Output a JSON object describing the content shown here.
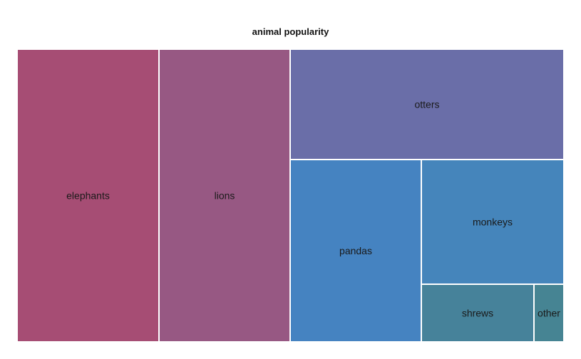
{
  "chart_data": {
    "type": "treemap",
    "title": "animal popularity",
    "items": [
      {
        "name": "elephants",
        "color": "#a64d74"
      },
      {
        "name": "lions",
        "color": "#975883"
      },
      {
        "name": "otters",
        "color": "#6a6ea8"
      },
      {
        "name": "pandas",
        "color": "#4583c1"
      },
      {
        "name": "monkeys",
        "color": "#4585bb"
      },
      {
        "name": "shrews",
        "color": "#46829a"
      },
      {
        "name": "other",
        "color": "#468493"
      }
    ]
  }
}
